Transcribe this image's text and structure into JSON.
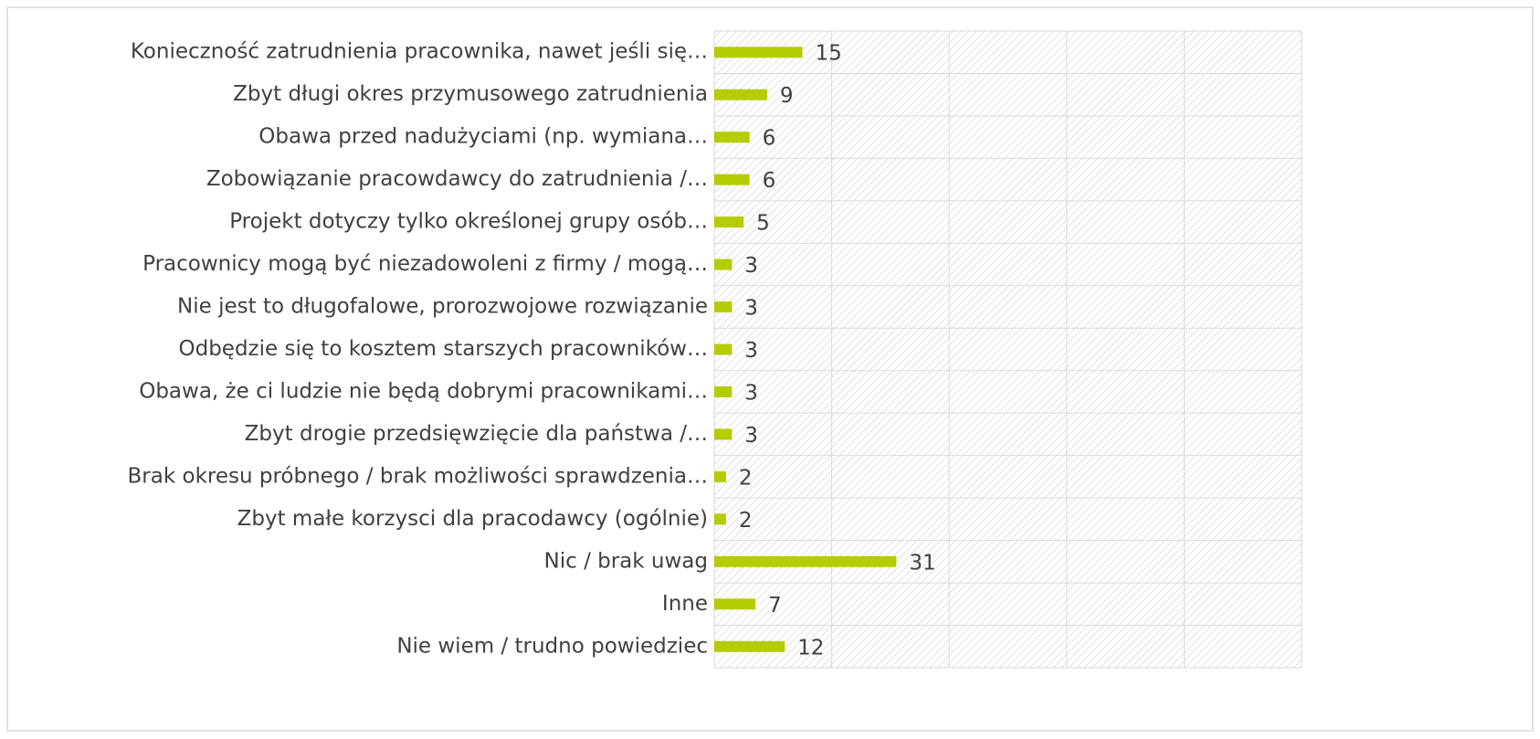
{
  "chart_data": {
    "type": "bar",
    "orientation": "horizontal",
    "categories": [
      "Konieczność zatrudnienia pracownika, nawet jeśli się…",
      "Zbyt długi okres przymusowego zatrudnienia",
      "Obawa przed nadużyciami (np. wymiana…",
      "Zobowiązanie pracowdawcy do zatrudnienia /…",
      "Projekt dotyczy tylko określonej grupy osób…",
      "Pracownicy mogą być niezadowoleni z firmy / mogą…",
      "Nie jest to długofalowe, prorozwojowe rozwiązanie",
      "Odbędzie się to kosztem starszych pracowników…",
      "Obawa, że ci ludzie nie będą dobrymi pracownikami…",
      "Zbyt drogie przedsięwzięcie dla państwa /…",
      "Brak okresu próbnego / brak możliwości sprawdzenia…",
      "Zbyt małe korzysci dla pracodawcy (ogólnie)",
      "Nic / brak uwag",
      "Inne",
      "Nie wiem / trudno powiedziec"
    ],
    "values": [
      15,
      9,
      6,
      6,
      5,
      3,
      3,
      3,
      3,
      3,
      2,
      2,
      31,
      7,
      12
    ],
    "color": "#b5cc00",
    "xlim": [
      0,
      100
    ],
    "xticks": [
      0,
      20,
      40,
      60,
      80,
      100
    ],
    "grid": true
  }
}
